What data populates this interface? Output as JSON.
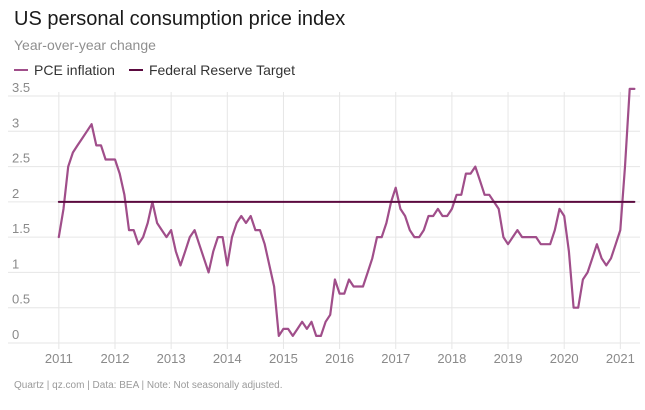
{
  "title": "US personal consumption price index",
  "subtitle": "Year-over-year change",
  "source": "Quartz | qz.com | Data: BEA | Note: Not seasonally adjusted.",
  "colors": {
    "pce": "#a04e8a",
    "target": "#5b0a3f",
    "grid": "#e6e6e6"
  },
  "chart_data": {
    "type": "line",
    "title": "US personal consumption price index",
    "subtitle": "Year-over-year change",
    "xlabel": "",
    "ylabel": "",
    "ylim": [
      0,
      3.5
    ],
    "xlim": [
      2010.7,
      2021.35
    ],
    "y_ticks": [
      "0",
      "0.5",
      "1",
      "1.5",
      "2",
      "2.5",
      "3",
      "3.5"
    ],
    "x_ticks": [
      "2011",
      "2012",
      "2013",
      "2014",
      "2015",
      "2016",
      "2017",
      "2018",
      "2019",
      "2020",
      "2021"
    ],
    "legend": [
      "PCE inflation",
      "Federal Reserve Target"
    ],
    "series": [
      {
        "name": "PCE inflation",
        "x": [
          2011.0,
          2011.083,
          2011.167,
          2011.25,
          2011.333,
          2011.417,
          2011.5,
          2011.583,
          2011.667,
          2011.75,
          2011.833,
          2011.917,
          2012.0,
          2012.083,
          2012.167,
          2012.25,
          2012.333,
          2012.417,
          2012.5,
          2012.583,
          2012.667,
          2012.75,
          2012.833,
          2012.917,
          2013.0,
          2013.083,
          2013.167,
          2013.25,
          2013.333,
          2013.417,
          2013.5,
          2013.583,
          2013.667,
          2013.75,
          2013.833,
          2013.917,
          2014.0,
          2014.083,
          2014.167,
          2014.25,
          2014.333,
          2014.417,
          2014.5,
          2014.583,
          2014.667,
          2014.75,
          2014.833,
          2014.917,
          2015.0,
          2015.083,
          2015.167,
          2015.25,
          2015.333,
          2015.417,
          2015.5,
          2015.583,
          2015.667,
          2015.75,
          2015.833,
          2015.917,
          2016.0,
          2016.083,
          2016.167,
          2016.25,
          2016.333,
          2016.417,
          2016.5,
          2016.583,
          2016.667,
          2016.75,
          2016.833,
          2016.917,
          2017.0,
          2017.083,
          2017.167,
          2017.25,
          2017.333,
          2017.417,
          2017.5,
          2017.583,
          2017.667,
          2017.75,
          2017.833,
          2017.917,
          2018.0,
          2018.083,
          2018.167,
          2018.25,
          2018.333,
          2018.417,
          2018.5,
          2018.583,
          2018.667,
          2018.75,
          2018.833,
          2018.917,
          2019.0,
          2019.083,
          2019.167,
          2019.25,
          2019.333,
          2019.417,
          2019.5,
          2019.583,
          2019.667,
          2019.75,
          2019.833,
          2019.917,
          2020.0,
          2020.083,
          2020.167,
          2020.25,
          2020.333,
          2020.417,
          2020.5,
          2020.583,
          2020.667,
          2020.75,
          2020.833,
          2020.917,
          2021.0,
          2021.083,
          2021.167,
          2021.25
        ],
        "values": [
          1.5,
          1.9,
          2.5,
          2.7,
          2.8,
          2.9,
          3.0,
          3.1,
          2.8,
          2.8,
          2.6,
          2.6,
          2.6,
          2.4,
          2.1,
          1.6,
          1.6,
          1.4,
          1.5,
          1.7,
          2.0,
          1.7,
          1.6,
          1.5,
          1.6,
          1.3,
          1.1,
          1.3,
          1.5,
          1.6,
          1.4,
          1.2,
          1.0,
          1.3,
          1.5,
          1.5,
          1.1,
          1.5,
          1.7,
          1.8,
          1.7,
          1.8,
          1.6,
          1.6,
          1.4,
          1.1,
          0.8,
          0.1,
          0.2,
          0.2,
          0.1,
          0.2,
          0.3,
          0.2,
          0.3,
          0.1,
          0.1,
          0.3,
          0.4,
          0.9,
          0.7,
          0.7,
          0.9,
          0.8,
          0.8,
          0.8,
          1.0,
          1.2,
          1.5,
          1.5,
          1.7,
          2.0,
          2.2,
          1.9,
          1.8,
          1.6,
          1.5,
          1.5,
          1.6,
          1.8,
          1.8,
          1.9,
          1.8,
          1.8,
          1.9,
          2.1,
          2.1,
          2.4,
          2.4,
          2.5,
          2.3,
          2.1,
          2.1,
          2.0,
          1.9,
          1.5,
          1.4,
          1.5,
          1.6,
          1.5,
          1.5,
          1.5,
          1.5,
          1.4,
          1.4,
          1.4,
          1.6,
          1.9,
          1.8,
          1.3,
          0.5,
          0.5,
          0.9,
          1.0,
          1.2,
          1.4,
          1.2,
          1.1,
          1.2,
          1.4,
          1.6,
          2.5,
          3.6,
          3.6
        ]
      },
      {
        "name": "Federal Reserve Target",
        "x": [
          2011.0,
          2021.25
        ],
        "values": [
          2,
          2
        ]
      }
    ]
  }
}
